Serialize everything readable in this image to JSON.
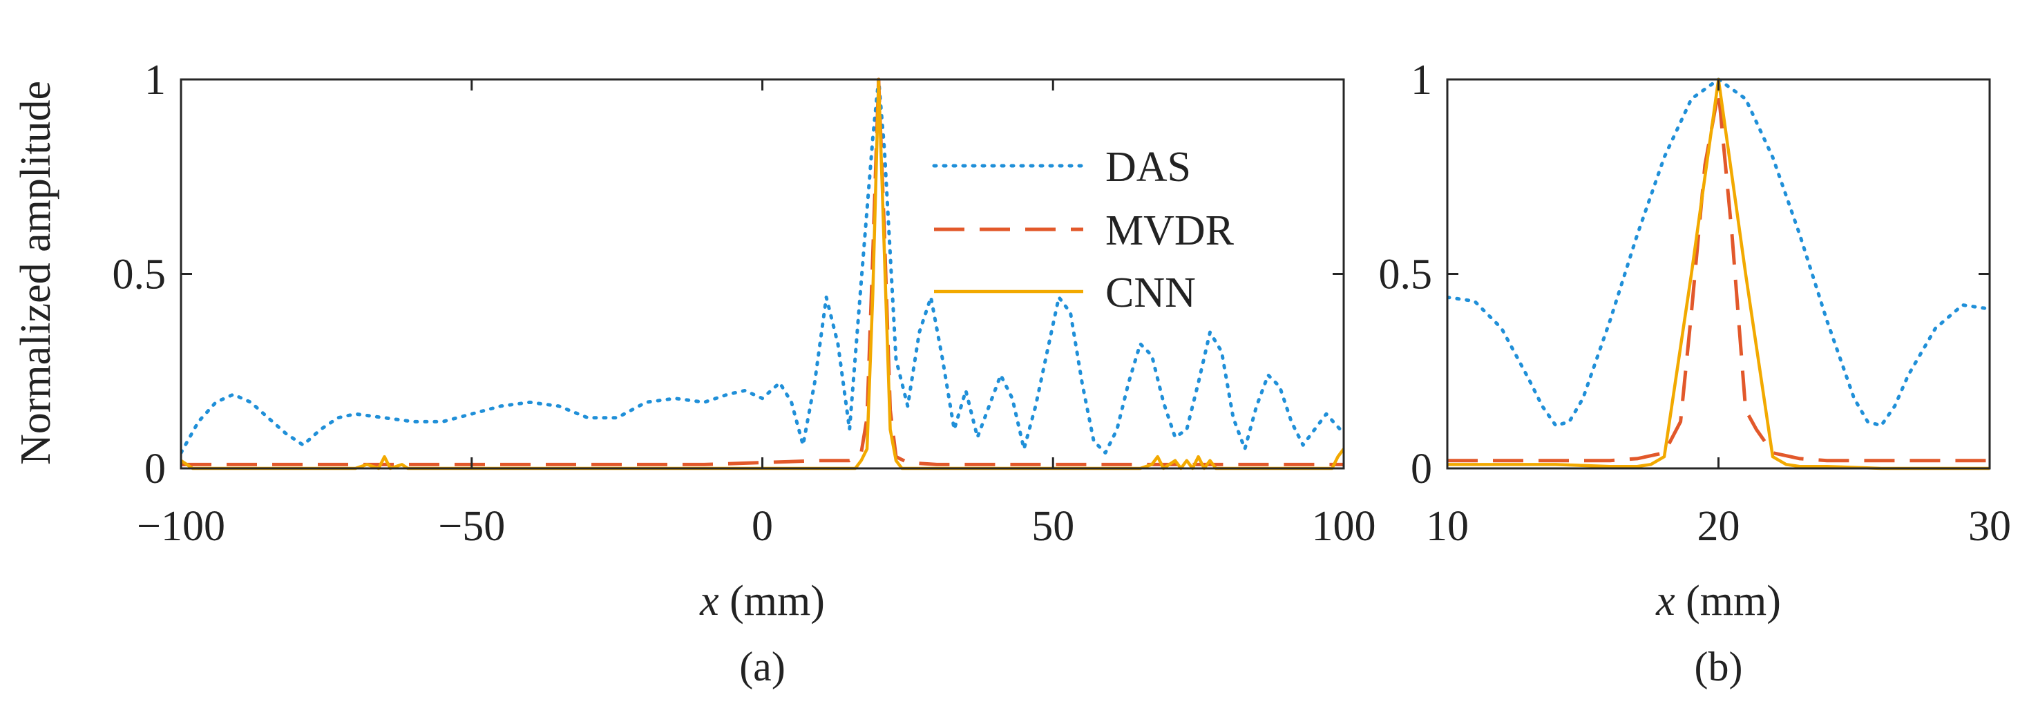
{
  "ylabel": "Normalized amplitude",
  "legend": {
    "location": "upper-right, inside panel (a)",
    "entries": [
      "DAS",
      "MVDR",
      "CNN"
    ]
  },
  "colors": {
    "DAS": "#1f8fd8",
    "MVDR": "#e2582a",
    "CNN": "#f2a900",
    "axis": "#262626",
    "text": "#222222"
  },
  "chart_data": [
    {
      "type": "line",
      "panel_label": "(a)",
      "xlabel_var": "x",
      "xlabel_unit": " (mm)",
      "ylabel": "Normalized amplitude",
      "xlim": [
        -100,
        100
      ],
      "ylim": [
        0,
        1
      ],
      "xticks": [
        -100,
        -50,
        0,
        50,
        100
      ],
      "xtick_labels": [
        "−100",
        "−50",
        "0",
        "50",
        "100"
      ],
      "yticks": [
        0,
        0.5,
        1
      ],
      "ytick_labels": [
        "0",
        "0.5",
        "1"
      ],
      "series": [
        {
          "name": "DAS",
          "style": "dotted",
          "x": [
            -100,
            -97,
            -94,
            -91,
            -88,
            -85,
            -82,
            -79,
            -76,
            -73,
            -70,
            -65,
            -60,
            -55,
            -50,
            -45,
            -40,
            -35,
            -30,
            -25,
            -20,
            -15,
            -10,
            -6,
            -3,
            0,
            3,
            5,
            7,
            9,
            11,
            13,
            15,
            17,
            19,
            20,
            21,
            23,
            25,
            27,
            29,
            31,
            33,
            35,
            37,
            39,
            41,
            43,
            45,
            47,
            49,
            51,
            53,
            55,
            57,
            59,
            61,
            63,
            65,
            67,
            69,
            71,
            73,
            75,
            77,
            79,
            81,
            83,
            85,
            87,
            89,
            91,
            93,
            95,
            97,
            100
          ],
          "y": [
            0.04,
            0.12,
            0.17,
            0.19,
            0.17,
            0.13,
            0.09,
            0.06,
            0.1,
            0.13,
            0.14,
            0.13,
            0.12,
            0.12,
            0.14,
            0.16,
            0.17,
            0.16,
            0.13,
            0.13,
            0.17,
            0.18,
            0.17,
            0.19,
            0.2,
            0.18,
            0.22,
            0.17,
            0.06,
            0.22,
            0.44,
            0.32,
            0.1,
            0.48,
            0.85,
            1.0,
            0.82,
            0.28,
            0.16,
            0.35,
            0.44,
            0.28,
            0.1,
            0.2,
            0.08,
            0.16,
            0.24,
            0.18,
            0.05,
            0.16,
            0.3,
            0.44,
            0.4,
            0.22,
            0.07,
            0.04,
            0.1,
            0.22,
            0.32,
            0.29,
            0.17,
            0.08,
            0.1,
            0.22,
            0.35,
            0.3,
            0.13,
            0.05,
            0.16,
            0.24,
            0.21,
            0.12,
            0.06,
            0.1,
            0.14,
            0.09
          ]
        },
        {
          "name": "MVDR",
          "style": "dashed",
          "x": [
            -100,
            -90,
            -80,
            -70,
            -60,
            -50,
            -40,
            -30,
            -20,
            -10,
            0,
            10,
            15,
            17,
            18,
            19,
            20,
            21,
            22,
            23,
            25,
            30,
            40,
            50,
            60,
            70,
            80,
            90,
            98,
            100
          ],
          "y": [
            0.01,
            0.01,
            0.01,
            0.01,
            0.01,
            0.01,
            0.01,
            0.01,
            0.01,
            0.01,
            0.015,
            0.02,
            0.02,
            0.04,
            0.13,
            0.55,
            1.0,
            0.6,
            0.15,
            0.03,
            0.015,
            0.01,
            0.01,
            0.01,
            0.01,
            0.01,
            0.01,
            0.01,
            0.01,
            0.01
          ]
        },
        {
          "name": "CNN",
          "style": "solid",
          "x": [
            -100,
            -99,
            -98,
            -96,
            -90,
            -80,
            -70,
            -68,
            -66,
            -65,
            -64,
            -62,
            -61,
            -60,
            -55,
            -50,
            -40,
            -30,
            -20,
            -10,
            0,
            10,
            16,
            17,
            18,
            19,
            20,
            21,
            22,
            23,
            24,
            30,
            40,
            50,
            60,
            65,
            67,
            68,
            69,
            71,
            72,
            73,
            74,
            75,
            76,
            77,
            78,
            80,
            85,
            90,
            95,
            97,
            98,
            99,
            100
          ],
          "y": [
            0.02,
            0.01,
            0.0,
            0.0,
            0.0,
            0.0,
            0.0,
            0.01,
            0.0,
            0.03,
            0.0,
            0.01,
            0.0,
            0.0,
            0.0,
            0.0,
            0.0,
            0.0,
            0.0,
            0.0,
            0.0,
            0.0,
            0.0,
            0.02,
            0.05,
            0.45,
            1.0,
            0.55,
            0.1,
            0.02,
            0.0,
            0.0,
            0.0,
            0.0,
            0.0,
            0.0,
            0.01,
            0.03,
            0.0,
            0.02,
            0.0,
            0.02,
            0.0,
            0.03,
            0.0,
            0.02,
            0.0,
            0.0,
            0.0,
            0.0,
            0.0,
            0.0,
            0.0,
            0.03,
            0.05
          ]
        }
      ]
    },
    {
      "type": "line",
      "panel_label": "(b)",
      "xlabel_var": "x",
      "xlabel_unit": " (mm)",
      "xlim": [
        10,
        30
      ],
      "ylim": [
        0,
        1
      ],
      "xticks": [
        10,
        20,
        30
      ],
      "xtick_labels": [
        "10",
        "20",
        "30"
      ],
      "yticks": [
        0,
        0.5,
        1
      ],
      "ytick_labels": [
        "0",
        "0.5",
        "1"
      ],
      "series": [
        {
          "name": "DAS",
          "style": "dotted",
          "x": [
            10,
            11,
            12,
            13,
            13.5,
            14,
            14.5,
            15,
            16,
            17,
            18,
            19,
            20,
            21,
            22,
            23,
            24,
            25,
            25.5,
            26,
            26.5,
            27,
            28,
            29,
            30
          ],
          "y": [
            0.44,
            0.43,
            0.36,
            0.23,
            0.16,
            0.11,
            0.12,
            0.18,
            0.38,
            0.6,
            0.8,
            0.95,
            1.0,
            0.95,
            0.8,
            0.6,
            0.38,
            0.18,
            0.12,
            0.11,
            0.16,
            0.24,
            0.36,
            0.42,
            0.41
          ]
        },
        {
          "name": "MVDR",
          "style": "dashed",
          "x": [
            10,
            12,
            14,
            16,
            17,
            18,
            18.6,
            19,
            19.5,
            20,
            20.5,
            21,
            21.4,
            22,
            23,
            24,
            26,
            28,
            30
          ],
          "y": [
            0.02,
            0.02,
            0.02,
            0.02,
            0.025,
            0.04,
            0.12,
            0.4,
            0.78,
            0.97,
            0.6,
            0.15,
            0.1,
            0.04,
            0.025,
            0.02,
            0.02,
            0.02,
            0.02
          ]
        },
        {
          "name": "CNN",
          "style": "solid",
          "x": [
            10,
            12,
            14,
            16,
            17,
            17.5,
            18,
            19,
            20,
            21,
            22,
            22.5,
            23,
            24,
            26,
            28,
            30
          ],
          "y": [
            0.01,
            0.01,
            0.01,
            0.005,
            0.005,
            0.01,
            0.03,
            0.5,
            1.0,
            0.5,
            0.03,
            0.01,
            0.005,
            0.005,
            0.0,
            0.0,
            0.0
          ]
        }
      ]
    }
  ]
}
